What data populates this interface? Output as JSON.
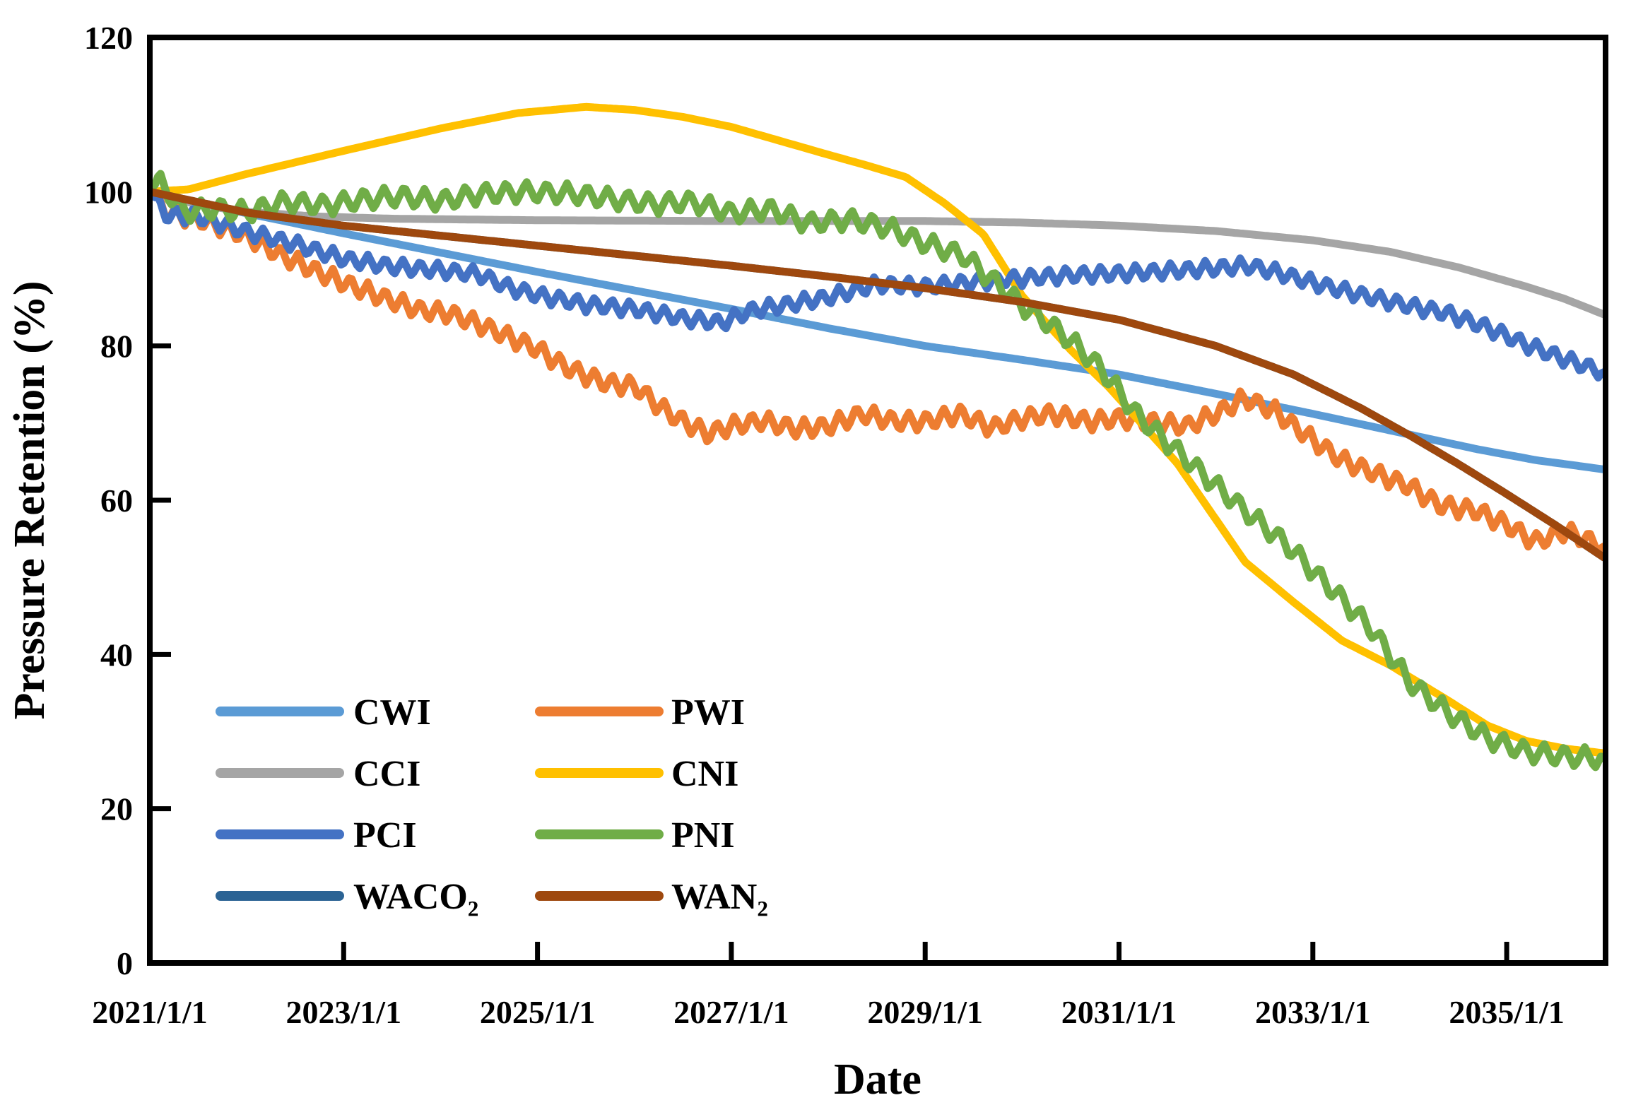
{
  "window": {
    "background": "#ffffff"
  },
  "chart_data": {
    "type": "line",
    "title": "",
    "xlabel": "Date",
    "ylabel": "Pressure Retention (%)",
    "x_axis": {
      "tick_values": [
        2021,
        2023,
        2025,
        2027,
        2029,
        2031,
        2033,
        2035
      ],
      "tick_labels": [
        "2021/1/1",
        "2023/1/1",
        "2025/1/1",
        "2027/1/1",
        "2029/1/1",
        "2031/1/1",
        "2033/1/1",
        "2035/1/1"
      ],
      "lim": [
        2021,
        2036.02
      ]
    },
    "y_axis": {
      "tick_values": [
        0,
        20,
        40,
        60,
        80,
        100,
        120
      ],
      "tick_labels": [
        "0",
        "20",
        "40",
        "60",
        "80",
        "100",
        "120"
      ],
      "lim": [
        0,
        120
      ]
    },
    "grid": false,
    "plot_border": "full box, thick black",
    "legend": {
      "position": "inside lower-left",
      "columns": 2,
      "rows": [
        [
          "CWI",
          "PWI"
        ],
        [
          "CCI",
          "CNI"
        ],
        [
          "PCI",
          "PNI"
        ],
        [
          "WACO₂",
          "WAN₂"
        ]
      ]
    },
    "series": [
      {
        "name": "CWI",
        "color": "#5B9BD5",
        "line_style": "smooth",
        "points": [
          [
            2021,
            100
          ],
          [
            2022,
            97.2
          ],
          [
            2023,
            94.6
          ],
          [
            2024,
            92.1
          ],
          [
            2025,
            89.6
          ],
          [
            2026,
            87.2
          ],
          [
            2027,
            84.8
          ],
          [
            2028,
            82.3
          ],
          [
            2029,
            80.0
          ],
          [
            2030,
            78.2
          ],
          [
            2031,
            76.3
          ],
          [
            2032,
            73.8
          ],
          [
            2033,
            71.2
          ],
          [
            2034,
            68.5
          ],
          [
            2034.7,
            66.6
          ],
          [
            2035.3,
            65.2
          ],
          [
            2036,
            64.0
          ]
        ]
      },
      {
        "name": "PWI",
        "color": "#ED7D31",
        "line_style": "zigzag",
        "oscillation": {
          "amplitude": 1.25,
          "period_years": 0.18
        },
        "points": [
          [
            2021,
            100
          ],
          [
            2021.17,
            97.2
          ],
          [
            2021.5,
            96.5
          ],
          [
            2022,
            94.3
          ],
          [
            2022.35,
            91.8
          ],
          [
            2022.7,
            89.8
          ],
          [
            2023,
            88.2
          ],
          [
            2023.4,
            86.3
          ],
          [
            2023.8,
            84.6
          ],
          [
            2024.1,
            84.2
          ],
          [
            2024.4,
            82.8
          ],
          [
            2024.7,
            81.2
          ],
          [
            2025,
            79.6
          ],
          [
            2025.3,
            77.2
          ],
          [
            2025.7,
            75.2
          ],
          [
            2026,
            74.8
          ],
          [
            2026.35,
            71.3
          ],
          [
            2026.75,
            68.6
          ],
          [
            2027,
            69.6
          ],
          [
            2027.3,
            70.3
          ],
          [
            2027.7,
            69.2
          ],
          [
            2028,
            69.6
          ],
          [
            2028.35,
            71.2
          ],
          [
            2028.7,
            70.2
          ],
          [
            2029,
            70.2
          ],
          [
            2029.35,
            71.2
          ],
          [
            2029.7,
            69.4
          ],
          [
            2030,
            70.6
          ],
          [
            2030.3,
            71.2
          ],
          [
            2030.7,
            70.2
          ],
          [
            2031,
            70.6
          ],
          [
            2031.3,
            70.2
          ],
          [
            2031.7,
            69.6
          ],
          [
            2032,
            71.2
          ],
          [
            2032.3,
            73.2
          ],
          [
            2032.6,
            71.6
          ],
          [
            2033,
            67.8
          ],
          [
            2033.3,
            65.2
          ],
          [
            2033.7,
            63.2
          ],
          [
            2034,
            61.8
          ],
          [
            2034.3,
            59.4
          ],
          [
            2034.7,
            58.6
          ],
          [
            2035,
            56.8
          ],
          [
            2035.3,
            54.6
          ],
          [
            2035.6,
            56.0
          ],
          [
            2036,
            54.0
          ]
        ]
      },
      {
        "name": "CCI",
        "color": "#A5A5A5",
        "line_style": "smooth",
        "points": [
          [
            2021,
            100
          ],
          [
            2021.5,
            98.3
          ],
          [
            2022,
            97.4
          ],
          [
            2022.7,
            96.8
          ],
          [
            2023.5,
            96.5
          ],
          [
            2025,
            96.3
          ],
          [
            2027,
            96.2
          ],
          [
            2029,
            96.2
          ],
          [
            2030,
            96.0
          ],
          [
            2031,
            95.6
          ],
          [
            2032,
            94.9
          ],
          [
            2033,
            93.7
          ],
          [
            2033.8,
            92.2
          ],
          [
            2034.5,
            90.2
          ],
          [
            2035.2,
            87.7
          ],
          [
            2035.6,
            86.1
          ],
          [
            2036,
            84.1
          ]
        ]
      },
      {
        "name": "CNI",
        "color": "#FFC000",
        "line_style": "smooth",
        "points": [
          [
            2021,
            100
          ],
          [
            2021.4,
            100.3
          ],
          [
            2022,
            102.3
          ],
          [
            2023,
            105.3
          ],
          [
            2024,
            108.2
          ],
          [
            2024.8,
            110.2
          ],
          [
            2025.5,
            111.0
          ],
          [
            2026,
            110.6
          ],
          [
            2026.5,
            109.7
          ],
          [
            2027,
            108.4
          ],
          [
            2027.5,
            106.6
          ],
          [
            2028,
            104.8
          ],
          [
            2028.4,
            103.4
          ],
          [
            2028.8,
            101.9
          ],
          [
            2029.2,
            98.5
          ],
          [
            2029.6,
            94.5
          ],
          [
            2030,
            86.5
          ],
          [
            2030.5,
            79.5
          ],
          [
            2030.9,
            74.6
          ],
          [
            2031.6,
            64.8
          ],
          [
            2032,
            57.5
          ],
          [
            2032.3,
            52.0
          ],
          [
            2032.8,
            46.8
          ],
          [
            2033.3,
            41.8
          ],
          [
            2033.8,
            38.6
          ],
          [
            2034.4,
            34.0
          ],
          [
            2034.8,
            30.8
          ],
          [
            2035.2,
            28.8
          ],
          [
            2035.6,
            27.8
          ],
          [
            2036,
            27.2
          ]
        ]
      },
      {
        "name": "PCI",
        "color": "#4472C4",
        "line_style": "zigzag",
        "oscillation": {
          "amplitude": 1.05,
          "period_years": 0.18
        },
        "points": [
          [
            2021,
            100
          ],
          [
            2021.17,
            97.0
          ],
          [
            2021.5,
            96.8
          ],
          [
            2022,
            94.8
          ],
          [
            2022.5,
            93.2
          ],
          [
            2023,
            91.3
          ],
          [
            2023.5,
            90.3
          ],
          [
            2024,
            89.8
          ],
          [
            2024.4,
            89.3
          ],
          [
            2024.7,
            87.6
          ],
          [
            2025,
            86.6
          ],
          [
            2025.5,
            85.4
          ],
          [
            2026,
            84.8
          ],
          [
            2026.5,
            83.6
          ],
          [
            2026.9,
            83.0
          ],
          [
            2027.2,
            84.6
          ],
          [
            2027.5,
            85.2
          ],
          [
            2028,
            86.3
          ],
          [
            2028.5,
            88.0
          ],
          [
            2029,
            87.7
          ],
          [
            2029.5,
            88.3
          ],
          [
            2030,
            88.8
          ],
          [
            2030.5,
            89.2
          ],
          [
            2031,
            89.4
          ],
          [
            2031.5,
            89.7
          ],
          [
            2032,
            90.1
          ],
          [
            2032.35,
            90.4
          ],
          [
            2032.7,
            89.3
          ],
          [
            2033,
            88.2
          ],
          [
            2033.5,
            86.6
          ],
          [
            2034,
            85.2
          ],
          [
            2034.4,
            84.2
          ],
          [
            2034.8,
            82.4
          ],
          [
            2035.2,
            80.2
          ],
          [
            2035.6,
            78.3
          ],
          [
            2036,
            76.6
          ]
        ]
      },
      {
        "name": "PNI",
        "color": "#70AD47",
        "line_style": "zigzag",
        "oscillation": {
          "amplitude": 1.35,
          "period_years": 0.21
        },
        "points": [
          [
            2021,
            100.3
          ],
          [
            2021.1,
            101.3
          ],
          [
            2021.35,
            97.4
          ],
          [
            2021.7,
            97.8
          ],
          [
            2022,
            97.3
          ],
          [
            2022.4,
            98.7
          ],
          [
            2022.8,
            98.2
          ],
          [
            2023.2,
            99.0
          ],
          [
            2023.6,
            99.4
          ],
          [
            2024,
            98.8
          ],
          [
            2024.4,
            99.7
          ],
          [
            2024.9,
            100.0
          ],
          [
            2025.4,
            99.7
          ],
          [
            2025.8,
            99.0
          ],
          [
            2026.2,
            98.4
          ],
          [
            2026.6,
            98.7
          ],
          [
            2027,
            97.2
          ],
          [
            2027.4,
            97.7
          ],
          [
            2027.8,
            95.9
          ],
          [
            2028.2,
            96.4
          ],
          [
            2028.6,
            95.4
          ],
          [
            2029,
            93.3
          ],
          [
            2029.4,
            91.7
          ],
          [
            2029.7,
            88.5
          ],
          [
            2030,
            85.3
          ],
          [
            2030.4,
            81.8
          ],
          [
            2030.8,
            77.3
          ],
          [
            2031.2,
            70.9
          ],
          [
            2031.6,
            66.4
          ],
          [
            2032,
            61.9
          ],
          [
            2032.4,
            57.6
          ],
          [
            2032.7,
            54.6
          ],
          [
            2033.2,
            48.4
          ],
          [
            2033.6,
            43.4
          ],
          [
            2034,
            36.4
          ],
          [
            2034.4,
            32.4
          ],
          [
            2034.8,
            29.2
          ],
          [
            2035.2,
            27.4
          ],
          [
            2035.6,
            26.8
          ],
          [
            2036,
            26.5
          ]
        ]
      },
      {
        "name": "WACO₂",
        "color": "#2B6394",
        "line_style": "smooth",
        "note": "curve coincides with WAN₂ and is hidden beneath it in the plot",
        "points": [
          [
            2021,
            100
          ],
          [
            2022,
            97.3
          ],
          [
            2023,
            95.6
          ],
          [
            2024,
            94.3
          ],
          [
            2025,
            93.0
          ],
          [
            2026,
            91.7
          ],
          [
            2027,
            90.4
          ],
          [
            2028,
            89.0
          ],
          [
            2029,
            87.5
          ],
          [
            2030,
            85.7
          ],
          [
            2031,
            83.4
          ],
          [
            2032,
            80.0
          ],
          [
            2032.8,
            76.3
          ],
          [
            2033.5,
            71.9
          ],
          [
            2034,
            68.4
          ],
          [
            2034.5,
            64.7
          ],
          [
            2035,
            60.8
          ],
          [
            2035.5,
            56.8
          ],
          [
            2036,
            52.6
          ]
        ]
      },
      {
        "name": "WAN₂",
        "color": "#9E480E",
        "line_style": "smooth",
        "points": [
          [
            2021,
            100
          ],
          [
            2022,
            97.3
          ],
          [
            2023,
            95.6
          ],
          [
            2024,
            94.3
          ],
          [
            2025,
            93.0
          ],
          [
            2026,
            91.7
          ],
          [
            2027,
            90.4
          ],
          [
            2028,
            89.0
          ],
          [
            2029,
            87.5
          ],
          [
            2030,
            85.7
          ],
          [
            2031,
            83.4
          ],
          [
            2032,
            80.0
          ],
          [
            2032.8,
            76.3
          ],
          [
            2033.5,
            71.9
          ],
          [
            2034,
            68.4
          ],
          [
            2034.5,
            64.7
          ],
          [
            2035,
            60.8
          ],
          [
            2035.5,
            56.8
          ],
          [
            2036,
            52.6
          ]
        ]
      }
    ]
  }
}
